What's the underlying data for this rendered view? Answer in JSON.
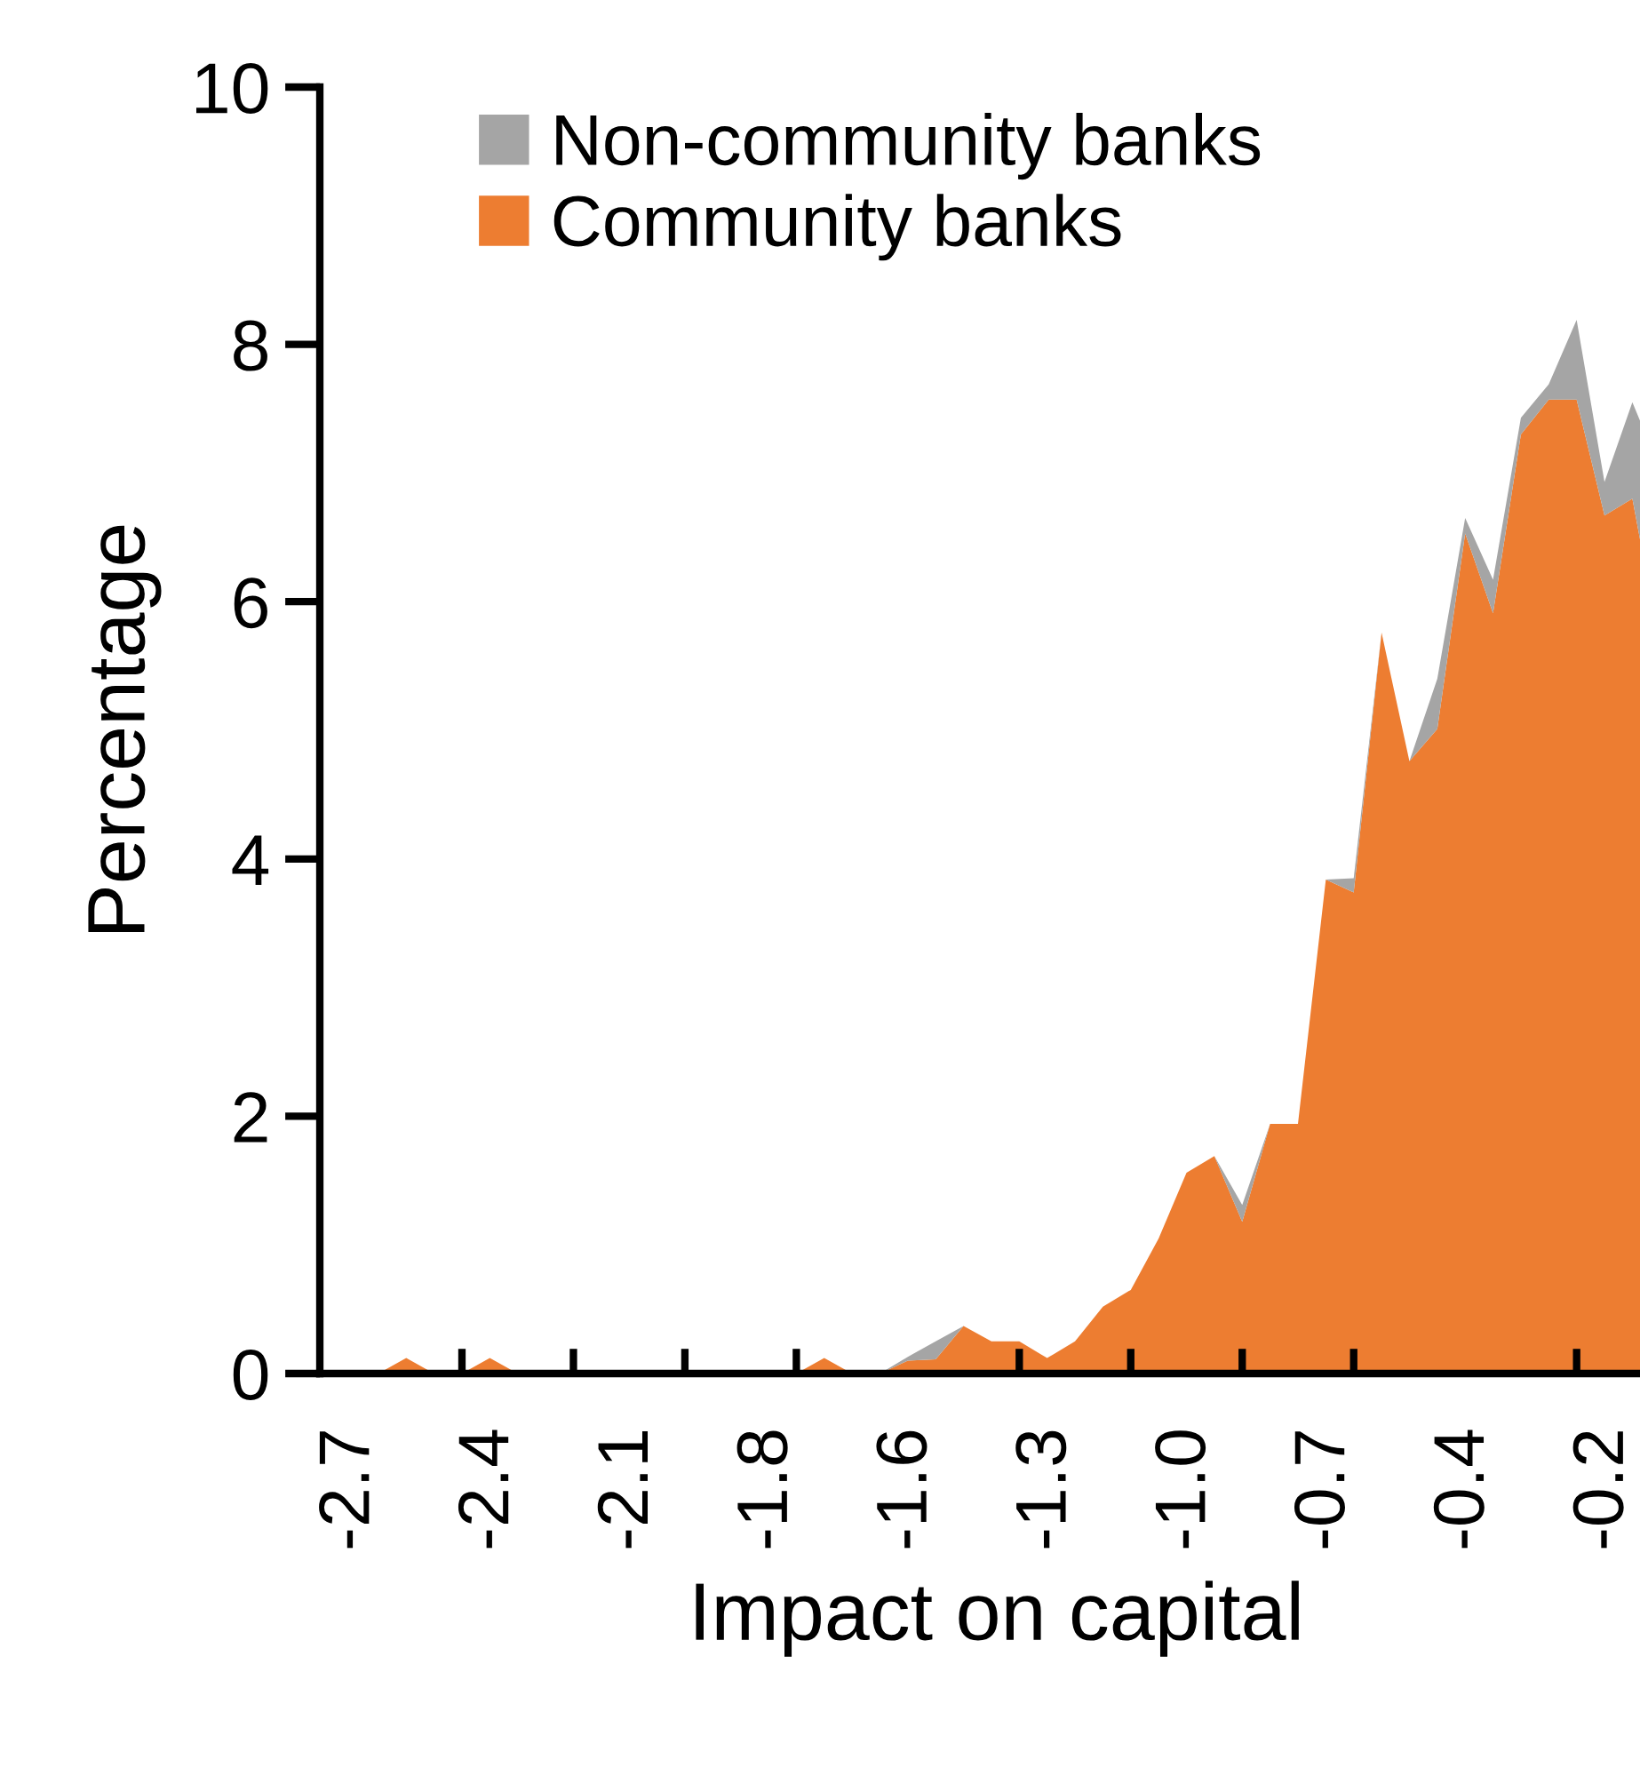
{
  "chart_data": {
    "type": "area",
    "stacked": true,
    "xlabel": "Impact on capital",
    "ylabel": "Percentage",
    "categories": [
      "-2.7",
      null,
      null,
      null,
      null,
      "-2.4",
      null,
      null,
      null,
      null,
      "-2.1",
      null,
      null,
      null,
      null,
      "-1.8",
      null,
      null,
      null,
      null,
      "-1.6",
      null,
      null,
      null,
      null,
      "-1.3",
      null,
      null,
      null,
      null,
      "-1.0",
      null,
      null,
      null,
      null,
      "-0.7",
      null,
      null,
      null,
      null,
      "-0.4",
      null,
      null,
      null,
      null,
      "-0.2",
      null,
      null
    ],
    "series": [
      {
        "name": "Community banks",
        "color": "#ed7d31",
        "values": [
          0,
          0,
          0.12,
          0,
          0,
          0.12,
          0,
          0,
          0,
          0,
          0,
          0,
          0,
          0,
          0,
          0,
          0,
          0.12,
          0,
          0,
          0.1,
          0.11,
          0.37,
          0.25,
          0.25,
          0.12,
          0.25,
          0.52,
          0.65,
          1.05,
          1.56,
          1.69,
          1.18,
          1.94,
          1.94,
          3.84,
          3.74,
          5.76,
          4.76,
          5.01,
          6.53,
          5.91,
          7.3,
          7.57,
          7.57,
          6.67,
          6.8,
          5.65
        ]
      },
      {
        "name": "Non-community banks",
        "color": "#a5a5a5",
        "values": [
          0,
          0,
          0,
          0,
          0,
          0,
          0,
          0,
          0,
          0,
          0,
          0,
          0,
          0,
          0,
          0,
          0,
          0,
          0,
          0,
          0.03,
          0.14,
          0,
          0,
          0,
          0,
          0,
          0,
          0,
          0,
          0,
          0,
          0.13,
          0,
          0,
          0,
          0.11,
          0,
          0,
          0.39,
          0.12,
          0.26,
          0.13,
          0.12,
          0.62,
          0.26,
          0.75,
          1.38
        ]
      }
    ],
    "ylim": [
      0,
      10
    ],
    "yticks": [
      0,
      2,
      4,
      6,
      8,
      10
    ],
    "grid": false,
    "legend": "top left"
  }
}
